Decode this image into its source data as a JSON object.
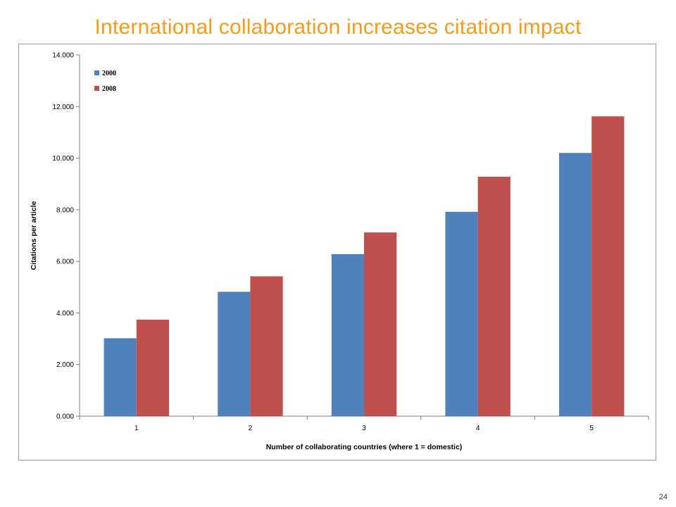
{
  "slide": {
    "title": "International collaboration increases citation impact",
    "page_number": "24"
  },
  "chart_data": {
    "type": "bar",
    "xlabel": "Number of collaborating countries (where 1 = domestic)",
    "ylabel": "Citations per article",
    "ylim": [
      0,
      14
    ],
    "yticks": [
      0,
      2,
      4,
      6,
      8,
      10,
      12,
      14
    ],
    "ytick_labels": [
      "0.000",
      "2.000",
      "4.000",
      "6.000",
      "8.000",
      "10.000",
      "12.000",
      "14.000"
    ],
    "categories": [
      "1",
      "2",
      "3",
      "4",
      "5"
    ],
    "series": [
      {
        "name": "2000",
        "color": "#4f81bd",
        "values": [
          3.02,
          4.82,
          6.28,
          7.92,
          10.2
        ]
      },
      {
        "name": "2008",
        "color": "#c0504d",
        "values": [
          3.74,
          5.42,
          7.12,
          9.28,
          11.62
        ]
      }
    ],
    "legend_position": "top-left",
    "grid": false
  }
}
